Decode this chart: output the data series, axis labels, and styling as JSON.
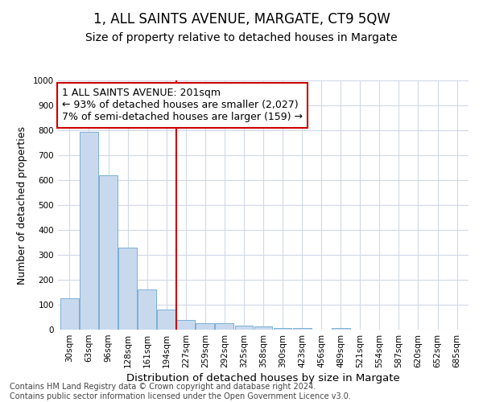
{
  "title1": "1, ALL SAINTS AVENUE, MARGATE, CT9 5QW",
  "title2": "Size of property relative to detached houses in Margate",
  "xlabel": "Distribution of detached houses by size in Margate",
  "ylabel": "Number of detached properties",
  "categories": [
    "30sqm",
    "63sqm",
    "96sqm",
    "128sqm",
    "161sqm",
    "194sqm",
    "227sqm",
    "259sqm",
    "292sqm",
    "325sqm",
    "358sqm",
    "390sqm",
    "423sqm",
    "456sqm",
    "489sqm",
    "521sqm",
    "554sqm",
    "587sqm",
    "620sqm",
    "652sqm",
    "685sqm"
  ],
  "values": [
    125,
    793,
    618,
    330,
    160,
    80,
    40,
    27,
    25,
    17,
    13,
    8,
    5,
    0,
    7,
    0,
    0,
    0,
    0,
    0,
    0
  ],
  "bar_color": "#c8d9ee",
  "bar_edge_color": "#7aafd4",
  "vline_x_index": 5,
  "vline_color": "#cc0000",
  "annotation_line1": "1 ALL SAINTS AVENUE: 201sqm",
  "annotation_line2": "← 93% of detached houses are smaller (2,027)",
  "annotation_line3": "7% of semi-detached houses are larger (159) →",
  "annotation_box_color": "#ffffff",
  "annotation_box_edge": "#cc0000",
  "ylim": [
    0,
    1000
  ],
  "yticks": [
    0,
    100,
    200,
    300,
    400,
    500,
    600,
    700,
    800,
    900,
    1000
  ],
  "footer1": "Contains HM Land Registry data © Crown copyright and database right 2024.",
  "footer2": "Contains public sector information licensed under the Open Government Licence v3.0.",
  "bg_color": "#ffffff",
  "grid_color": "#d0d8e8",
  "title1_fontsize": 12,
  "title2_fontsize": 10,
  "xlabel_fontsize": 9.5,
  "ylabel_fontsize": 9,
  "tick_fontsize": 7.5,
  "annotation_fontsize": 9,
  "footer_fontsize": 7
}
